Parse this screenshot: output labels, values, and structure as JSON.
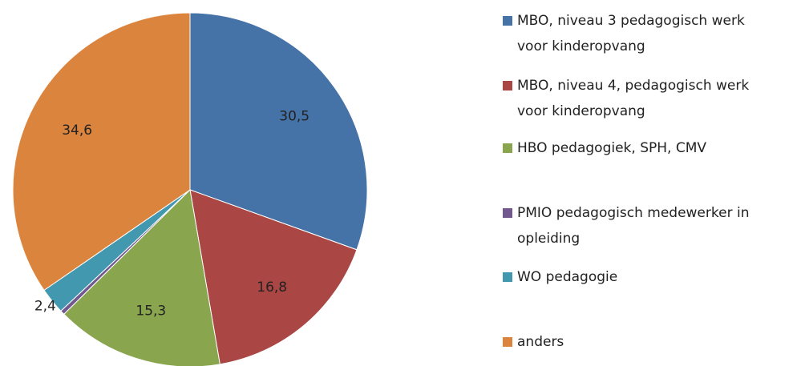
{
  "chart_data": {
    "type": "pie",
    "categories": [
      "MBO, niveau 3 pedagogisch werk voor kinderopvang",
      "MBO, niveau 4, pedagogisch werk voor kinderopvang",
      "HBO pedagogiek, SPH, CMV",
      "PMIO pedagogisch medewerker in opleiding",
      "WO pedagogie",
      "anders"
    ],
    "values": [
      30.5,
      16.8,
      15.3,
      0.4,
      2.4,
      34.6
    ],
    "value_labels": [
      "30,5",
      "16,8",
      "15,3",
      null,
      "2,4",
      "34,6"
    ],
    "colors": [
      "#4572a7",
      "#aa4643",
      "#89a54e",
      "#71588f",
      "#4198af",
      "#db843d"
    ],
    "legend": "right"
  }
}
